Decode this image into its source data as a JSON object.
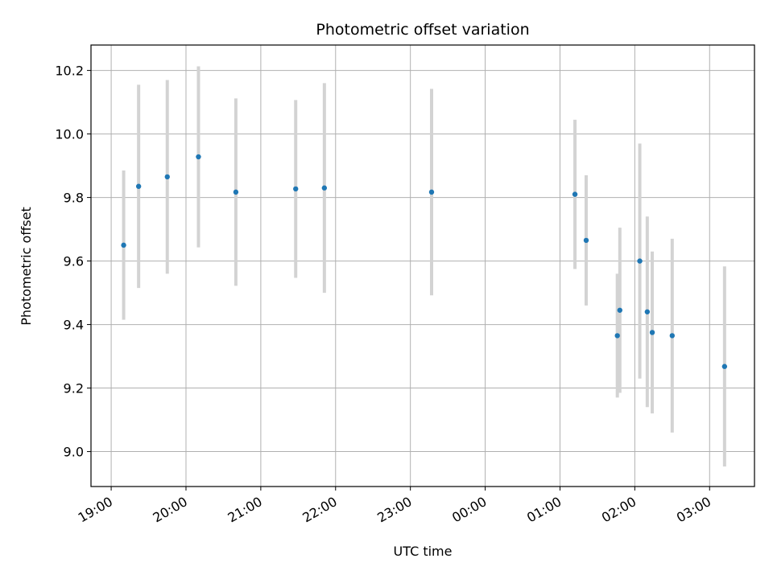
{
  "chart_data": {
    "type": "scatter",
    "title": "Photometric offset variation",
    "xlabel": "UTC time",
    "ylabel": "Photometric offset",
    "x_tick_labels": [
      "19:00",
      "20:00",
      "21:00",
      "22:00",
      "23:00",
      "00:00",
      "01:00",
      "02:00",
      "03:00"
    ],
    "x_tick_hours": [
      19,
      20,
      21,
      22,
      23,
      24,
      25,
      26,
      27
    ],
    "xlim_hours": [
      18.73,
      27.6
    ],
    "y_ticks": [
      9.0,
      9.2,
      9.4,
      9.6,
      9.8,
      10.0,
      10.2
    ],
    "y_tick_labels": [
      "9.0",
      "9.2",
      "9.4",
      "9.6",
      "9.8",
      "10.0",
      "10.2"
    ],
    "ylim": [
      8.89,
      10.28
    ],
    "grid": true,
    "colors": {
      "point": "#1f77b4",
      "errorbar": "#d3d3d3",
      "grid": "#b0b0b0"
    },
    "points": [
      {
        "time": "19:10",
        "y": 9.65,
        "yerr": 0.235
      },
      {
        "time": "19:22",
        "y": 9.835,
        "yerr": 0.32
      },
      {
        "time": "19:45",
        "y": 9.865,
        "yerr": 0.305
      },
      {
        "time": "20:10",
        "y": 9.928,
        "yerr": 0.285
      },
      {
        "time": "20:40",
        "y": 9.817,
        "yerr": 0.295
      },
      {
        "time": "21:28",
        "y": 9.827,
        "yerr": 0.28
      },
      {
        "time": "21:51",
        "y": 9.83,
        "yerr": 0.33
      },
      {
        "time": "23:17",
        "y": 9.817,
        "yerr": 0.325
      },
      {
        "time": "01:12",
        "y": 9.81,
        "yerr": 0.235
      },
      {
        "time": "01:21",
        "y": 9.665,
        "yerr": 0.205
      },
      {
        "time": "01:46",
        "y": 9.365,
        "yerr": 0.195
      },
      {
        "time": "01:48",
        "y": 9.445,
        "yerr": 0.26
      },
      {
        "time": "02:04",
        "y": 9.6,
        "yerr": 0.37
      },
      {
        "time": "02:10",
        "y": 9.44,
        "yerr": 0.3
      },
      {
        "time": "02:14",
        "y": 9.375,
        "yerr": 0.255
      },
      {
        "time": "02:30",
        "y": 9.365,
        "yerr": 0.305
      },
      {
        "time": "03:12",
        "y": 9.268,
        "yerr": 0.315
      }
    ]
  }
}
